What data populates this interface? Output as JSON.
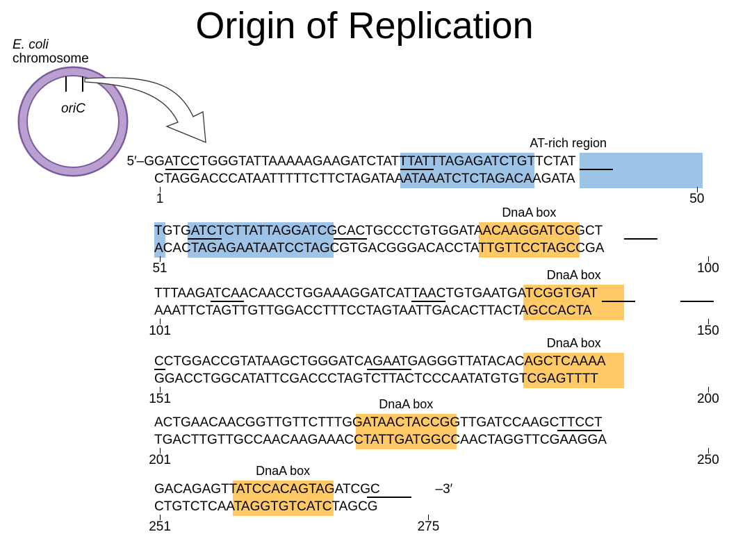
{
  "title": "Origin of Replication",
  "chromosome": {
    "species": "E. coli",
    "label": "chromosome",
    "locus": "oriC"
  },
  "colors": {
    "at_rich": "#9dc3e6",
    "dnaa_box": "#ffc966",
    "plasmid_ring": "#9b7cb8",
    "plasmid_dark": "#7a5a9c"
  },
  "sequence_rows": [
    {
      "prefix": "5′–G",
      "top": "GATCCTGGGTATTAAAAAGAAGATCTATTTATTTAGAGATCTGTTCTAT",
      "bottom": "CTAGGACCCATAATTTTTCTTCTAGATAAATAAATCTCTAGACAAGATA",
      "suffix": "",
      "start": "1",
      "end": "50",
      "highlights": [
        {
          "type": "at",
          "from": 22,
          "to": 34
        },
        {
          "type": "at",
          "from": 38,
          "to": 49
        }
      ],
      "underlines": [
        [
          1,
          4
        ],
        [
          22,
          25
        ],
        [
          38,
          41
        ]
      ],
      "labels": [
        {
          "text": "AT-rich region",
          "col": 37
        }
      ]
    },
    {
      "prefix": "",
      "top": "TGTGATCTCTTATTAGGATCGCACTGCCCTGTGGATAACAAGGATCGGCT",
      "bottom": "ACACTAGAGAATAATCCTAGCGTGACGGGACACCTATTGTTCCTAGCCGA",
      "suffix": "",
      "start": "51",
      "end": "100",
      "highlights": [
        {
          "type": "at",
          "from": 0,
          "to": 1
        },
        {
          "type": "at",
          "from": 3,
          "to": 16
        },
        {
          "type": "dnaa",
          "from": 29,
          "to": 38
        }
      ],
      "underlines": [
        [
          3,
          6
        ],
        [
          16,
          19
        ],
        [
          42,
          45
        ]
      ],
      "labels": [
        {
          "text": "DnaA box",
          "col": 33.5
        }
      ]
    },
    {
      "prefix": "",
      "top": "TTTAAGATCAACAACCTGGAAAGGATCATTAACTGTGAATGATCGGTGAT",
      "bottom": "AAATTCTAGTTGTTGGACCTTTCCTAGTAATTGACACTTACTAGCCACTA",
      "suffix": "",
      "start": "101",
      "end": "150",
      "highlights": [
        {
          "type": "dnaa",
          "from": 33,
          "to": 42
        }
      ],
      "underlines": [
        [
          5,
          8
        ],
        [
          23,
          26
        ],
        [
          40,
          43
        ],
        [
          47,
          50
        ]
      ],
      "labels": [
        {
          "text": "DnaA box",
          "col": 37.5
        }
      ]
    },
    {
      "prefix": "",
      "top": "CCTGGACCGTATAAGCTGGGATCAGAATGAGGGTTATACACAGCTCAAAA",
      "bottom": "GGACCTGGCATATTCGACCCTAGTCTTACTCCCAATATGTGTCGAGTTTT",
      "suffix": "",
      "start": "151",
      "end": "200",
      "highlights": [
        {
          "type": "dnaa",
          "from": 33,
          "to": 42
        }
      ],
      "underlines": [
        [
          0,
          1
        ],
        [
          19,
          23
        ]
      ],
      "labels": [
        {
          "text": "DnaA box",
          "col": 37.5
        }
      ]
    },
    {
      "prefix": "",
      "top": "ACTGAACAACGGTTGTTCTTTGGATAACTACCGGTTGATCCAAGCTTCCT",
      "bottom": "TGACTTGTTGCCAACAAGAAACCTATTGATGGCCAACTAGGTTCGAAGGA",
      "suffix": "",
      "start": "201",
      "end": "250",
      "highlights": [
        {
          "type": "dnaa",
          "from": 18,
          "to": 27
        }
      ],
      "underlines": [
        [
          36,
          40
        ]
      ],
      "labels": [
        {
          "text": "DnaA box",
          "col": 22.5
        }
      ]
    },
    {
      "prefix": "",
      "top": "GACAGAGTTATCCACAGTAGATCGC",
      "bottom": "CTGTCTCAATAGGTGTCATCTAGCG",
      "suffix": "–3′",
      "start": "251",
      "end": "275",
      "highlights": [
        {
          "type": "dnaa",
          "from": 7,
          "to": 16
        }
      ],
      "underlines": [
        [
          19,
          23
        ]
      ],
      "labels": [
        {
          "text": "DnaA box",
          "col": 11.5
        }
      ]
    }
  ]
}
